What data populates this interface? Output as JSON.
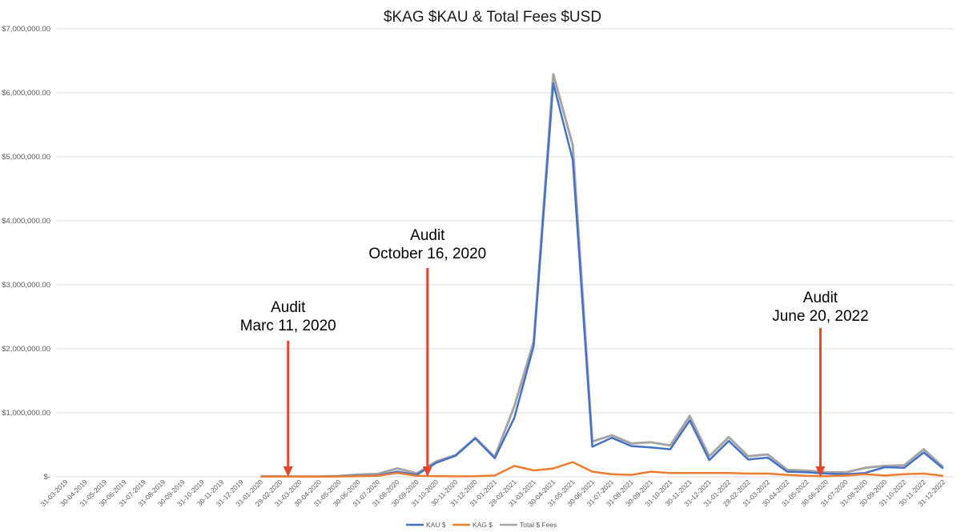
{
  "chart_data": {
    "type": "line",
    "title": "$KAG $KAU & Total Fees $USD",
    "xlabel": "",
    "ylabel": "",
    "ylim": [
      0,
      7000000
    ],
    "y_tick_values": [
      0,
      1000000,
      2000000,
      3000000,
      4000000,
      5000000,
      6000000,
      7000000
    ],
    "y_tick_labels": [
      "$-",
      "$1,000,000.00",
      "$2,000,000.00",
      "$3,000,000.00",
      "$4,000,000.00",
      "$5,000,000.00",
      "$6,000,000.00",
      "$7,000,000.00"
    ],
    "grid": true,
    "legend_position": "bottom",
    "categories": [
      "31-03-2019",
      "30-04-2019",
      "31-05-2019",
      "30-06-2019",
      "31-07-2019",
      "31-08-2019",
      "30-09-2019",
      "31-10-2019",
      "30-11-2019",
      "31-12-2019",
      "31-01-2020",
      "29-02-2020",
      "31-03-2020",
      "30-04-2020",
      "31-05-2020",
      "30-06-2020",
      "31-07-2020",
      "31-08-2020",
      "30-09-2020",
      "31-10-2020",
      "30-11-2020",
      "31-12-2020",
      "31-01-2021",
      "28-02-2021",
      "31-03-2021",
      "30-04-2021",
      "31-05-2021",
      "30-06-2021",
      "31-07-2021",
      "31-08-2021",
      "30-09-2021",
      "31-10-2021",
      "30-11-2021",
      "31-12-2021",
      "31-01-2022",
      "28-02-2022",
      "31-03-2022",
      "30-04-2022",
      "31-05-2022",
      "30-06-2020",
      "31-07-2020",
      "31-08-2020",
      "30-09-2020",
      "31-10-2022",
      "30-11-2022",
      "31-12-2022"
    ],
    "series": [
      {
        "name": "KAU $",
        "color": "#4472c4",
        "values": [
          null,
          null,
          null,
          null,
          null,
          null,
          null,
          null,
          null,
          null,
          5000,
          5000,
          3000,
          3000,
          8000,
          15000,
          20000,
          80000,
          30000,
          220000,
          330000,
          600000,
          290000,
          920000,
          2050000,
          6150000,
          4950000,
          470000,
          610000,
          480000,
          460000,
          430000,
          880000,
          260000,
          560000,
          270000,
          300000,
          80000,
          70000,
          50000,
          40000,
          60000,
          150000,
          140000,
          380000,
          130000
        ]
      },
      {
        "name": "KAG $",
        "color": "#ed7d31",
        "values": [
          null,
          null,
          null,
          null,
          null,
          null,
          null,
          null,
          null,
          null,
          2000,
          2000,
          2000,
          2000,
          5000,
          10000,
          15000,
          60000,
          15000,
          10000,
          8000,
          10000,
          20000,
          170000,
          100000,
          130000,
          230000,
          80000,
          40000,
          30000,
          80000,
          60000,
          60000,
          60000,
          60000,
          50000,
          50000,
          30000,
          15000,
          10000,
          20000,
          40000,
          20000,
          40000,
          50000,
          15000
        ]
      },
      {
        "name": "Total $ Fees",
        "color": "#a5a5a5",
        "values": [
          null,
          null,
          null,
          null,
          null,
          null,
          null,
          null,
          null,
          null,
          7000,
          7000,
          5000,
          5000,
          13000,
          35000,
          45000,
          130000,
          55000,
          240000,
          340000,
          610000,
          310000,
          1100000,
          2120000,
          6290000,
          5180000,
          550000,
          650000,
          520000,
          540000,
          490000,
          950000,
          320000,
          620000,
          320000,
          350000,
          110000,
          95000,
          70000,
          70000,
          140000,
          170000,
          180000,
          430000,
          150000
        ]
      }
    ],
    "annotations": [
      {
        "line1": "Audit",
        "line2": "Marc 11, 2020",
        "index": 11.4,
        "color": "#e0472b"
      },
      {
        "line1": "Audit",
        "line2": "October 16, 2020",
        "index": 18.55,
        "color": "#e0472b"
      },
      {
        "line1": "Audit",
        "line2": "June 20, 2022",
        "index": 38.7,
        "color": "#e0472b"
      }
    ]
  }
}
